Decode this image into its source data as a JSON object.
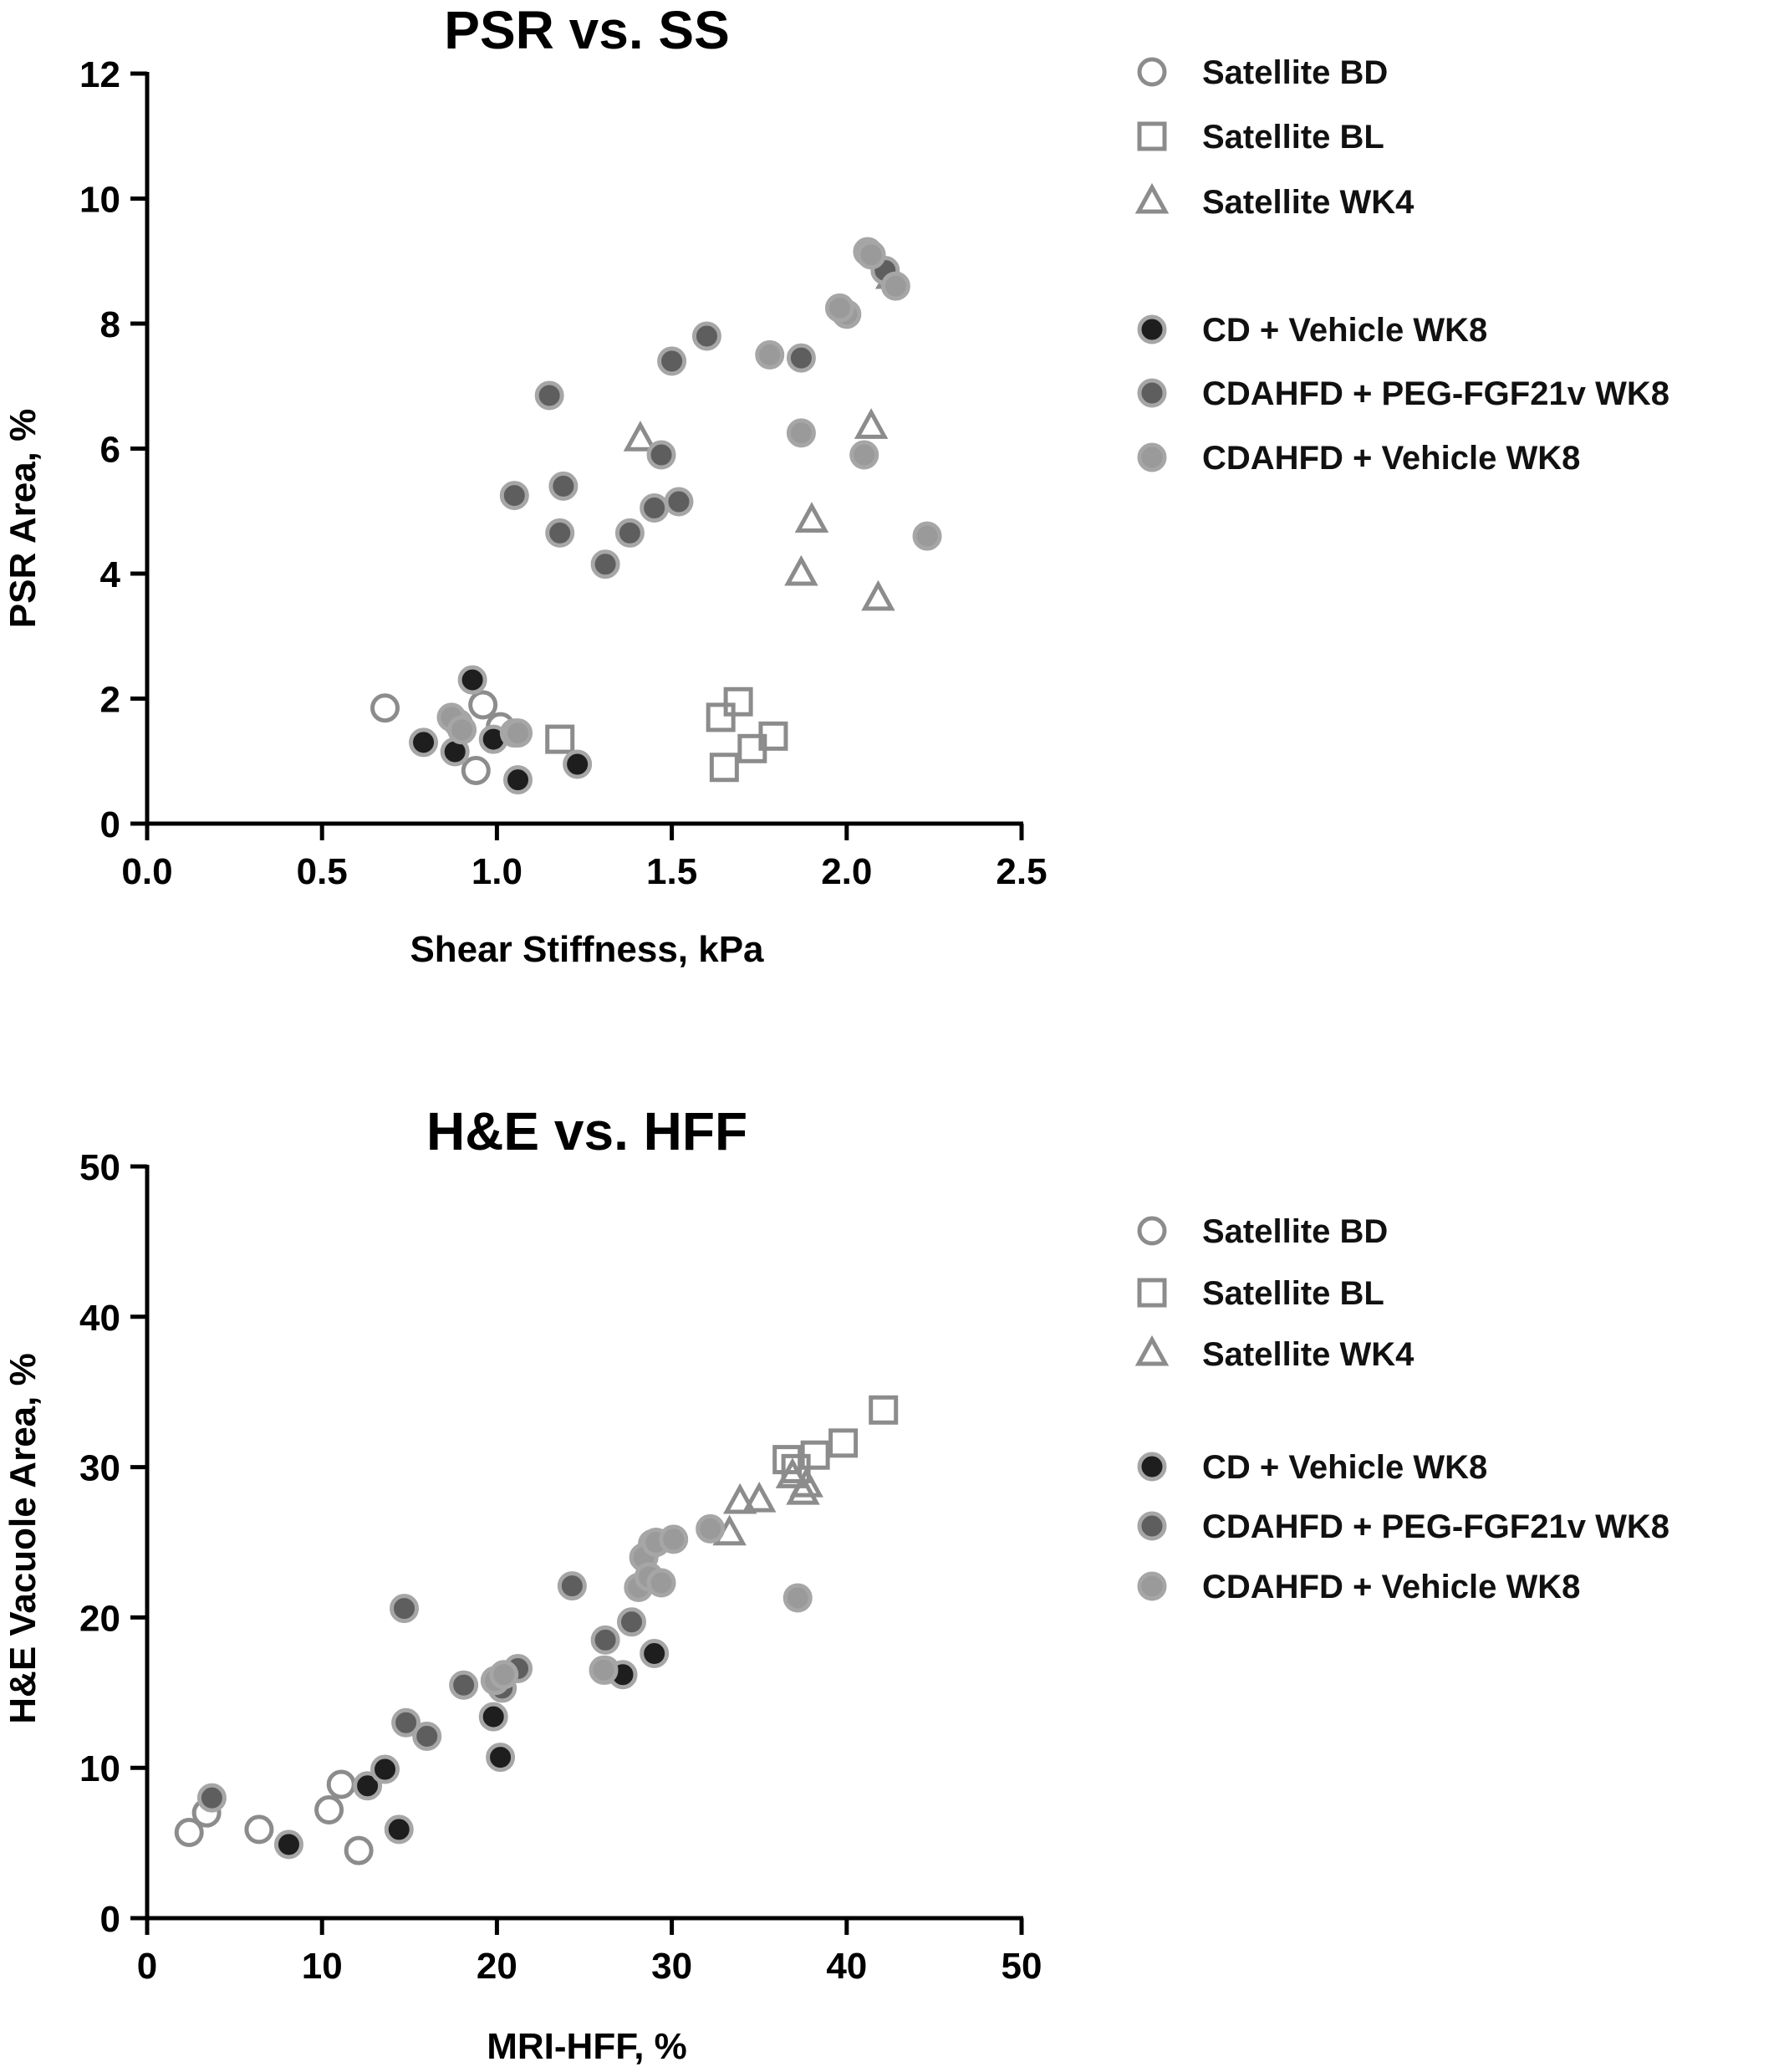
{
  "colors": {
    "satellite_edge": "#8c8c8c",
    "cd_fill": "#1e1e1e",
    "peg_fill": "#5e5e5e",
    "cdahfd_fill": "#9a9a9a",
    "marker_edge": "#a6a6a6",
    "axis": "#000000"
  },
  "chart_data": [
    {
      "type": "scatter",
      "title": "PSR vs. SS",
      "xlabel": "Shear Stiffness, kPa",
      "ylabel": "PSR Area, %",
      "xlim": [
        0,
        2.5
      ],
      "ylim": [
        0,
        12
      ],
      "xticks": [
        "0.0",
        "0.5",
        "1.0",
        "1.5",
        "2.0",
        "2.5"
      ],
      "yticks": [
        "0",
        "2",
        "4",
        "6",
        "8",
        "10",
        "12"
      ],
      "legend_position": "right",
      "series": [
        {
          "name": "Satellite BD",
          "marker": "open-circle",
          "x": [
            0.68,
            0.96,
            1.01,
            0.94
          ],
          "y": [
            1.85,
            1.9,
            1.55,
            0.85
          ]
        },
        {
          "name": "Satellite BL",
          "marker": "open-square",
          "x": [
            1.18,
            1.64,
            1.69,
            1.73,
            1.79,
            1.65
          ],
          "y": [
            1.35,
            1.7,
            1.95,
            1.2,
            1.4,
            0.9
          ]
        },
        {
          "name": "Satellite WK4",
          "marker": "open-triangle",
          "x": [
            1.41,
            2.13,
            2.07,
            1.9,
            1.87,
            2.09
          ],
          "y": [
            6.15,
            8.75,
            6.35,
            4.85,
            4.0,
            3.6
          ]
        },
        {
          "name": "CD + Vehicle WK8",
          "marker": "filled-circle",
          "x": [
            0.93,
            0.79,
            0.89,
            0.88,
            0.99,
            1.05,
            1.06,
            1.23
          ],
          "y": [
            2.3,
            1.3,
            1.6,
            1.15,
            1.35,
            1.45,
            0.7,
            0.95
          ]
        },
        {
          "name": "CDAHFD + PEG-FGF21v WK8",
          "marker": "filled-circle",
          "x": [
            1.15,
            1.05,
            1.19,
            1.18,
            1.31,
            1.38,
            1.45,
            1.47,
            1.52,
            1.5,
            1.6,
            1.87,
            2.11
          ],
          "y": [
            6.85,
            5.25,
            5.4,
            4.65,
            4.15,
            4.65,
            5.05,
            5.9,
            5.15,
            7.4,
            7.8,
            7.45,
            8.85
          ]
        },
        {
          "name": "CDAHFD + Vehicle WK8",
          "marker": "filled-circle",
          "x": [
            0.87,
            0.9,
            1.06,
            1.78,
            1.87,
            2.0,
            1.98,
            2.06,
            2.07,
            2.14,
            2.05,
            2.23
          ],
          "y": [
            1.7,
            1.5,
            1.45,
            7.5,
            6.25,
            8.15,
            8.25,
            9.15,
            9.1,
            8.6,
            5.9,
            4.6
          ]
        }
      ]
    },
    {
      "type": "scatter",
      "title": "H&E vs. HFF",
      "xlabel": "MRI-HFF, %",
      "ylabel": "H&E Vacuole Area, %",
      "xlim": [
        0,
        50
      ],
      "ylim": [
        0,
        50
      ],
      "xticks": [
        "0",
        "10",
        "20",
        "30",
        "40",
        "50"
      ],
      "yticks": [
        "0",
        "10",
        "20",
        "30",
        "40",
        "50"
      ],
      "legend_position": "right",
      "series": [
        {
          "name": "Satellite BD",
          "marker": "open-circle",
          "x": [
            2.4,
            3.4,
            6.4,
            10.4,
            11.1,
            12.1
          ],
          "y": [
            5.7,
            7.0,
            5.9,
            7.2,
            8.9,
            4.5
          ]
        },
        {
          "name": "Satellite BL",
          "marker": "open-square",
          "x": [
            36.6,
            37.1,
            38.2,
            39.8,
            42.1
          ],
          "y": [
            30.5,
            29.9,
            30.8,
            31.6,
            33.8
          ]
        },
        {
          "name": "Satellite WK4",
          "marker": "open-triangle",
          "x": [
            33.3,
            33.9,
            35.0,
            36.9,
            37.5,
            37.7
          ],
          "y": [
            25.6,
            27.7,
            27.8,
            29.4,
            28.3,
            28.8
          ]
        },
        {
          "name": "CD + Vehicle WK8",
          "marker": "filled-circle",
          "x": [
            8.1,
            12.6,
            13.6,
            14.4,
            19.8,
            20.2,
            26.2,
            27.2,
            29.0
          ],
          "y": [
            4.9,
            8.8,
            9.9,
            5.9,
            13.4,
            10.7,
            16.5,
            16.2,
            17.6
          ]
        },
        {
          "name": "CDAHFD + PEG-FGF21v WK8",
          "marker": "filled-circle",
          "x": [
            3.7,
            14.7,
            14.8,
            16.0,
            18.1,
            20.3,
            21.2,
            24.3,
            26.2,
            27.7,
            28.9
          ],
          "y": [
            8.0,
            20.6,
            13.0,
            12.1,
            15.5,
            15.3,
            16.6,
            22.1,
            18.5,
            19.7,
            24.9
          ]
        },
        {
          "name": "CDAHFD + Vehicle WK8",
          "marker": "filled-circle",
          "x": [
            19.9,
            20.4,
            26.1,
            28.1,
            28.4,
            28.7,
            29.1,
            29.4,
            30.1,
            32.2,
            37.2
          ],
          "y": [
            15.8,
            16.2,
            16.5,
            22.0,
            24.0,
            22.7,
            25.0,
            22.3,
            25.2,
            25.9,
            21.3
          ]
        }
      ]
    }
  ]
}
